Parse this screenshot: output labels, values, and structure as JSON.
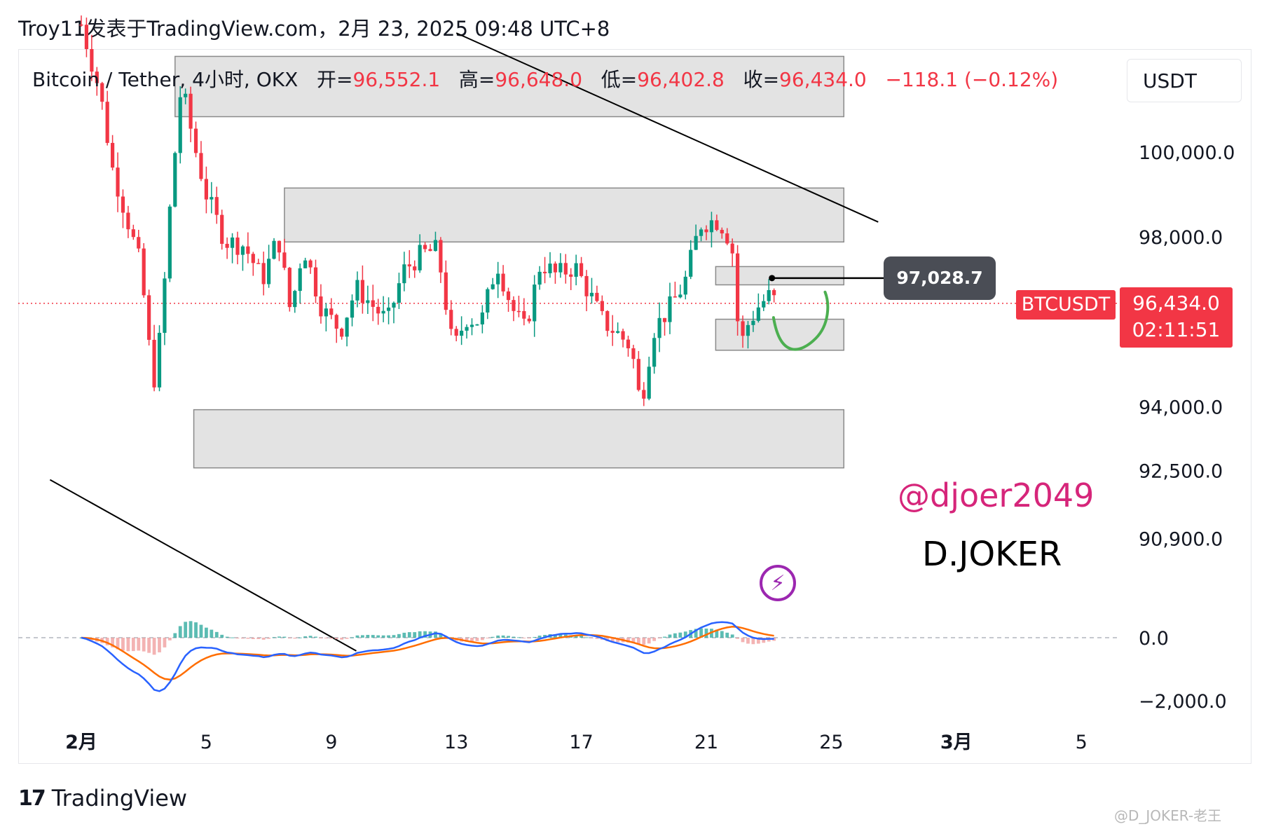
{
  "header": {
    "text": "Troy11发表于TradingView.com，2月 23, 2025 09:48 UTC+8"
  },
  "legend": {
    "symbol": "Bitcoin / Tether, 4小时, OKX",
    "open_label": "开=",
    "open": "96,552.1",
    "high_label": "高=",
    "high": "96,648.0",
    "low_label": "低=",
    "low": "96,402.8",
    "close_label": "收=",
    "close": "96,434.0",
    "change": "−118.1 (−0.12%)"
  },
  "currency": "USDT",
  "price_tag": {
    "price": "96,434.0",
    "countdown": "02:11:51",
    "symbol": "BTCUSDT"
  },
  "callout": "97,028.7",
  "handle": "@djoer2049",
  "brand": "D.JOKER",
  "footer": {
    "logo_mark": "17",
    "logo_text": "TradingView",
    "watermark": "@D_JOKER-老王"
  },
  "colors": {
    "up": "#089981",
    "down": "#f23645",
    "macd": "#2962ff",
    "signal": "#ff6d00",
    "annotation": "#4caf50"
  },
  "chart_data": {
    "type": "candlestick",
    "x_ticks": [
      {
        "label": "2月",
        "day": 1
      },
      {
        "label": "5",
        "day": 5
      },
      {
        "label": "9",
        "day": 9
      },
      {
        "label": "13",
        "day": 13
      },
      {
        "label": "17",
        "day": 17
      },
      {
        "label": "21",
        "day": 21
      },
      {
        "label": "25",
        "day": 25
      },
      {
        "label": "3月",
        "day": 29
      },
      {
        "label": "5",
        "day": 33
      }
    ],
    "y_ticks": [
      "100,000.0",
      "98,000.0",
      "94,000.0",
      "92,500.0",
      "90,900.0"
    ],
    "y_tick_values": [
      100000,
      98000,
      94000,
      92500,
      90900
    ],
    "macd_ticks": [
      "0.0",
      "−2,000.0"
    ],
    "macd_tick_values": [
      0,
      -2000
    ],
    "last_price": 96434.0,
    "zones": [
      {
        "x0": 4.0,
        "x1": 25.4,
        "y0": 100830,
        "y1": 102250
      },
      {
        "x0": 7.5,
        "x1": 25.4,
        "y0": 97880,
        "y1": 99150
      },
      {
        "x0": 21.3,
        "x1": 25.4,
        "y0": 96870,
        "y1": 97300
      },
      {
        "x0": 21.3,
        "x1": 25.4,
        "y0": 95330,
        "y1": 96060
      },
      {
        "x0": 4.6,
        "x1": 25.4,
        "y0": 92560,
        "y1": 93930
      }
    ],
    "trendlines": [
      {
        "x0": 13.0,
        "y0": 102800,
        "x1": 26.5,
        "y1": 98350
      },
      {
        "x0": 0.0,
        "y0": 92280,
        "x1": 9.8,
        "y1": 88250
      }
    ],
    "callout_point": {
      "x": 23.1,
      "y": 97028.7
    },
    "anchors": [
      {
        "day": 1.0,
        "close": 103000
      },
      {
        "day": 1.6,
        "close": 101400
      },
      {
        "day": 2.0,
        "close": 99600
      },
      {
        "day": 2.4,
        "close": 98600
      },
      {
        "day": 2.9,
        "close": 97300
      },
      {
        "day": 3.3,
        "close": 94500
      },
      {
        "day": 3.55,
        "close": 95800
      },
      {
        "day": 3.85,
        "close": 98800
      },
      {
        "day": 4.2,
        "close": 101600
      },
      {
        "day": 4.6,
        "close": 100200
      },
      {
        "day": 5.0,
        "close": 99000
      },
      {
        "day": 5.6,
        "close": 97900
      },
      {
        "day": 6.2,
        "close": 97800
      },
      {
        "day": 6.8,
        "close": 97000
      },
      {
        "day": 7.3,
        "close": 98000
      },
      {
        "day": 7.7,
        "close": 96200
      },
      {
        "day": 8.1,
        "close": 97800
      },
      {
        "day": 8.7,
        "close": 96300
      },
      {
        "day": 9.3,
        "close": 95800
      },
      {
        "day": 9.8,
        "close": 96800
      },
      {
        "day": 10.3,
        "close": 96400
      },
      {
        "day": 10.8,
        "close": 96000
      },
      {
        "day": 11.3,
        "close": 97200
      },
      {
        "day": 11.9,
        "close": 97600
      },
      {
        "day": 12.4,
        "close": 97700
      },
      {
        "day": 12.9,
        "close": 95300
      },
      {
        "day": 13.3,
        "close": 96100
      },
      {
        "day": 13.8,
        "close": 96000
      },
      {
        "day": 14.3,
        "close": 97400
      },
      {
        "day": 14.8,
        "close": 96300
      },
      {
        "day": 15.2,
        "close": 95800
      },
      {
        "day": 15.7,
        "close": 97400
      },
      {
        "day": 16.2,
        "close": 97100
      },
      {
        "day": 16.8,
        "close": 97300
      },
      {
        "day": 17.3,
        "close": 96600
      },
      {
        "day": 17.7,
        "close": 96000
      },
      {
        "day": 18.2,
        "close": 95700
      },
      {
        "day": 18.6,
        "close": 95400
      },
      {
        "day": 18.9,
        "close": 94000
      },
      {
        "day": 19.3,
        "close": 95800
      },
      {
        "day": 19.8,
        "close": 96300
      },
      {
        "day": 20.3,
        "close": 96900
      },
      {
        "day": 20.8,
        "close": 98300
      },
      {
        "day": 21.3,
        "close": 98400
      },
      {
        "day": 21.6,
        "close": 98200
      },
      {
        "day": 21.9,
        "close": 97500
      },
      {
        "day": 22.05,
        "close": 95300
      },
      {
        "day": 22.3,
        "close": 95900
      },
      {
        "day": 22.7,
        "close": 96400
      },
      {
        "day": 23.0,
        "close": 96600
      },
      {
        "day": 23.3,
        "close": 96434
      }
    ]
  }
}
